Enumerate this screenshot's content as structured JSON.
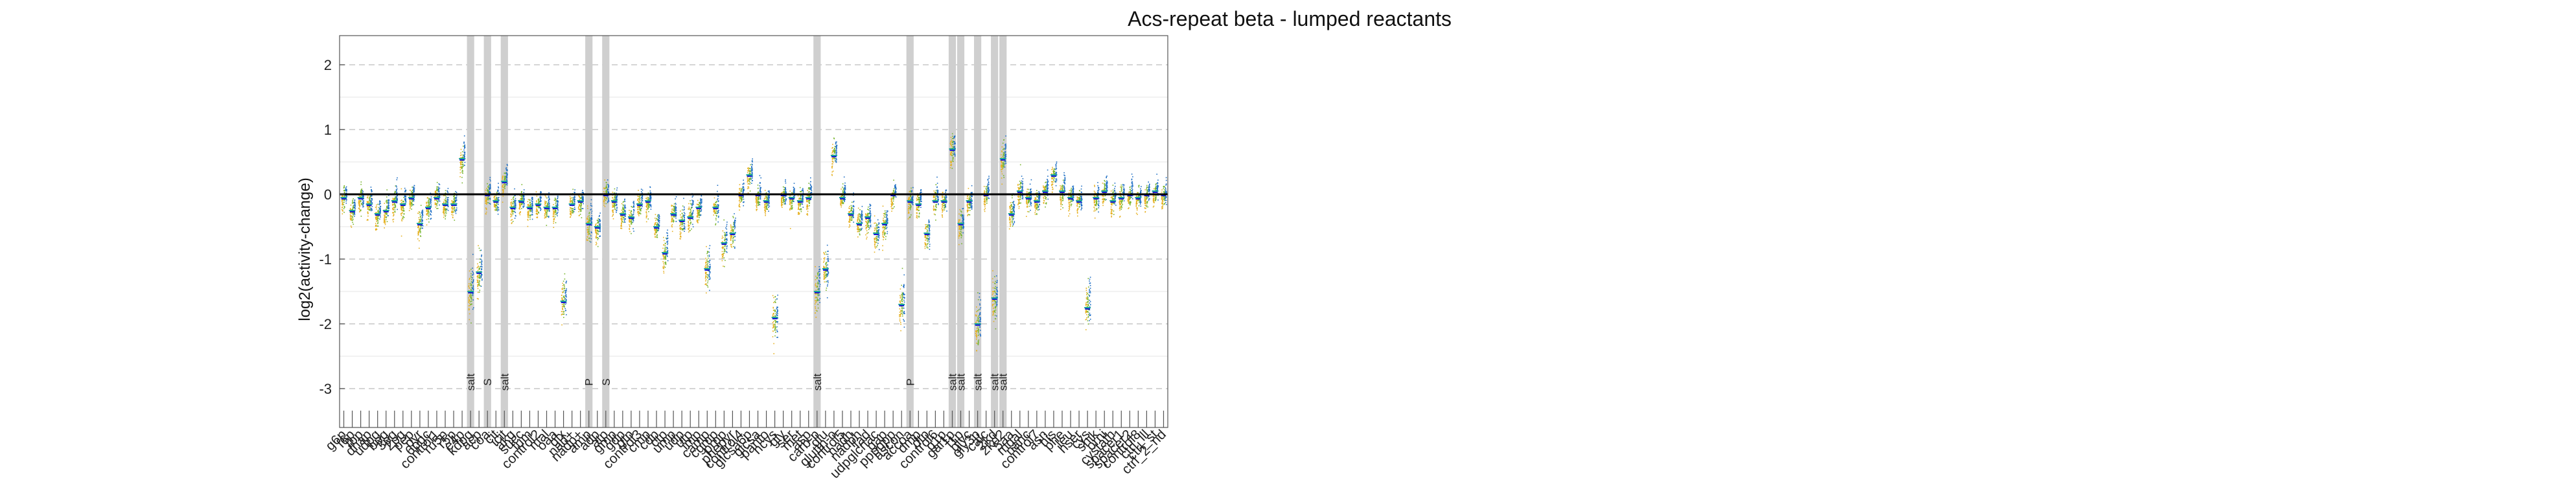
{
  "chart_data": {
    "type": "scatter",
    "title": "Acs-repeat beta - lumped reactants",
    "ylabel": "log2(activity-change)",
    "ylim": [
      -3.6,
      2.45
    ],
    "yticks": [
      -3,
      -2,
      -1,
      0,
      1,
      2
    ],
    "grid": true,
    "colors": {
      "yellow": "#e6b020",
      "green": "#77b52c",
      "blue": "#1f6fc4",
      "teal": "#19a89a",
      "highlight": "#cfcfcf"
    },
    "categories": [
      {
        "label": "g6p",
        "median": -0.05
      },
      {
        "label": "f6p",
        "median": -0.25
      },
      {
        "label": "fbp",
        "median": -0.05
      },
      {
        "label": "dhap",
        "median": -0.15
      },
      {
        "label": "udpg",
        "median": -0.3
      },
      {
        "label": "bpg",
        "median": -0.25
      },
      {
        "label": "3pg",
        "median": -0.1
      },
      {
        "label": "2pg",
        "median": -0.15
      },
      {
        "label": "pep",
        "median": -0.05
      },
      {
        "label": "pyr",
        "median": -0.45
      },
      {
        "label": "6pgc",
        "median": -0.2
      },
      {
        "label": "control1",
        "median": -0.05
      },
      {
        "label": "ru5p",
        "median": -0.15
      },
      {
        "label": "r5p",
        "median": -0.15
      },
      {
        "label": "e4p",
        "median": 0.55
      },
      {
        "label": "kdpg",
        "median": -1.5,
        "tag": "salt"
      },
      {
        "label": "acp",
        "median": -1.2
      },
      {
        "label": "coa",
        "median": 0,
        "tag": "S"
      },
      {
        "label": "cit",
        "median": -0.1
      },
      {
        "label": "icit",
        "median": 0.2,
        "tag": "salt"
      },
      {
        "label": "akg",
        "median": -0.2
      },
      {
        "label": "succ",
        "median": -0.1
      },
      {
        "label": "fum",
        "median": -0.2
      },
      {
        "label": "control2",
        "median": -0.15
      },
      {
        "label": "mal",
        "median": -0.2
      },
      {
        "label": "oaa",
        "median": -0.2
      },
      {
        "label": "glx",
        "median": -1.65
      },
      {
        "label": "nad+",
        "median": -0.15
      },
      {
        "label": "nadp+",
        "median": -0.1
      },
      {
        "label": "amp",
        "median": -0.45,
        "tag": "P"
      },
      {
        "label": "adp",
        "median": -0.5
      },
      {
        "label": "atp",
        "median": 0,
        "tag": "S"
      },
      {
        "label": "gmp",
        "median": -0.1
      },
      {
        "label": "gdp",
        "median": -0.3
      },
      {
        "label": "gtp",
        "median": -0.35
      },
      {
        "label": "control3",
        "median": -0.15
      },
      {
        "label": "cmp",
        "median": -0.1
      },
      {
        "label": "cdp",
        "median": -0.5
      },
      {
        "label": "ctp",
        "median": -0.9
      },
      {
        "label": "ump",
        "median": -0.3
      },
      {
        "label": "udp",
        "median": -0.4
      },
      {
        "label": "utp",
        "median": -0.35
      },
      {
        "label": "imp",
        "median": -0.2
      },
      {
        "label": "camp",
        "median": -1.15
      },
      {
        "label": "cgmp",
        "median": -0.2
      },
      {
        "label": "prpp",
        "median": -0.75
      },
      {
        "label": "phepyr",
        "median": -0.6
      },
      {
        "label": "control4",
        "median": 0
      },
      {
        "label": "glcsa6p",
        "median": 0.3
      },
      {
        "label": "glcsa",
        "median": 0
      },
      {
        "label": "panto",
        "median": -0.1
      },
      {
        "label": "hcys",
        "median": -1.9
      },
      {
        "label": "gly",
        "median": 0
      },
      {
        "label": "ser",
        "median": -0.05
      },
      {
        "label": "met",
        "median": -0.1
      },
      {
        "label": "asp",
        "median": -0.05
      },
      {
        "label": "carb-p",
        "median": -1.5,
        "tag": "salt"
      },
      {
        "label": "glu",
        "median": -1.15
      },
      {
        "label": "glutth-o",
        "median": 0.6
      },
      {
        "label": "control5",
        "median": -0.05
      },
      {
        "label": "nadh",
        "median": -0.3
      },
      {
        "label": "nadph",
        "median": -0.45
      },
      {
        "label": "fad",
        "median": -0.35
      },
      {
        "label": "udpglcnac",
        "median": -0.6
      },
      {
        "label": "gap",
        "median": -0.45
      },
      {
        "label": "pppgpp",
        "median": 0
      },
      {
        "label": "ascon",
        "median": -1.7
      },
      {
        "label": "accoa",
        "median": -0.1,
        "tag": "P"
      },
      {
        "label": "dmp",
        "median": -0.15
      },
      {
        "label": "dtp",
        "median": -0.6
      },
      {
        "label": "control6",
        "median": -0.1
      },
      {
        "label": "g1p",
        "median": -0.1
      },
      {
        "label": "gal1p",
        "median": 0.7,
        "tag": "salt"
      },
      {
        "label": "f1p",
        "median": -0.45,
        "tag": "salt"
      },
      {
        "label": "glyc",
        "median": -0.1
      },
      {
        "label": "gly3p",
        "median": -2.0,
        "tag": "salt"
      },
      {
        "label": "calc",
        "median": 0
      },
      {
        "label": "2kd",
        "median": -1.6,
        "tag": "salt"
      },
      {
        "label": "2kd2",
        "median": 0.55,
        "tag": "salt"
      },
      {
        "label": "5aa",
        "median": -0.3
      },
      {
        "label": "mgal",
        "median": 0.05
      },
      {
        "label": "nanc",
        "median": -0.05
      },
      {
        "label": "control7",
        "median": -0.1
      },
      {
        "label": "asn",
        "median": 0.05
      },
      {
        "label": "his",
        "median": 0.3
      },
      {
        "label": "phe",
        "median": 0.05
      },
      {
        "label": "leu",
        "median": -0.05
      },
      {
        "label": "hser",
        "median": -0.1
      },
      {
        "label": "cys",
        "median": -1.75
      },
      {
        "label": "shik",
        "median": -0.05
      },
      {
        "label": "orni",
        "median": 0.05
      },
      {
        "label": "cystath",
        "median": -0.1
      },
      {
        "label": "spacer1",
        "median": -0.05
      },
      {
        "label": "spacer2",
        "median": 0
      },
      {
        "label": "control8",
        "median": -0.05
      },
      {
        "label": "ctrl_lll",
        "median": 0
      },
      {
        "label": "ctrl_st",
        "median": 0.05
      },
      {
        "label": "ctrl_2_nd",
        "median": 0
      }
    ]
  }
}
